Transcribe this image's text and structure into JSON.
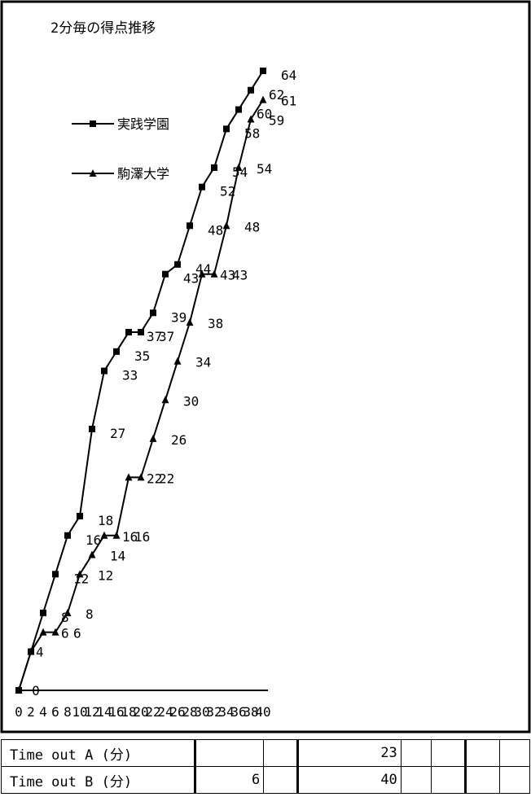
{
  "chart_data": {
    "type": "line",
    "title": "2分毎の得点推移",
    "x": [
      0,
      2,
      4,
      6,
      8,
      10,
      12,
      14,
      16,
      18,
      20,
      22,
      24,
      26,
      28,
      30,
      32,
      34,
      36,
      38,
      40
    ],
    "x_tick_labels": [
      "0",
      "2",
      "4",
      "6",
      "8",
      "10",
      "12",
      "14",
      "16",
      "18",
      "20",
      "22",
      "24",
      "26",
      "28",
      "30",
      "32",
      "34",
      "36",
      "38",
      "40"
    ],
    "series": [
      {
        "name": "実践学園",
        "marker": "square",
        "values": [
          0,
          4,
          8,
          12,
          16,
          18,
          27,
          33,
          35,
          37,
          37,
          39,
          43,
          44,
          48,
          52,
          54,
          58,
          60,
          62,
          64
        ]
      },
      {
        "name": "駒澤大学",
        "marker": "triangle",
        "values": [
          0,
          4,
          6,
          6,
          8,
          12,
          14,
          16,
          16,
          22,
          22,
          26,
          30,
          34,
          38,
          43,
          43,
          48,
          54,
          59,
          61
        ]
      }
    ],
    "ylim": [
      0,
      64
    ],
    "grid": false,
    "legend_position": "top-left",
    "colors": {
      "line": "#000000",
      "marker": "#000000",
      "background": "#ffffff"
    }
  },
  "timeout_table": {
    "rows": [
      {
        "label": "Time out A (分)",
        "cells": [
          "",
          "",
          "23",
          "",
          "",
          "",
          ""
        ]
      },
      {
        "label": "Time out B (分)",
        "cells": [
          "6",
          "",
          "40",
          "",
          "",
          "",
          ""
        ]
      }
    ]
  }
}
